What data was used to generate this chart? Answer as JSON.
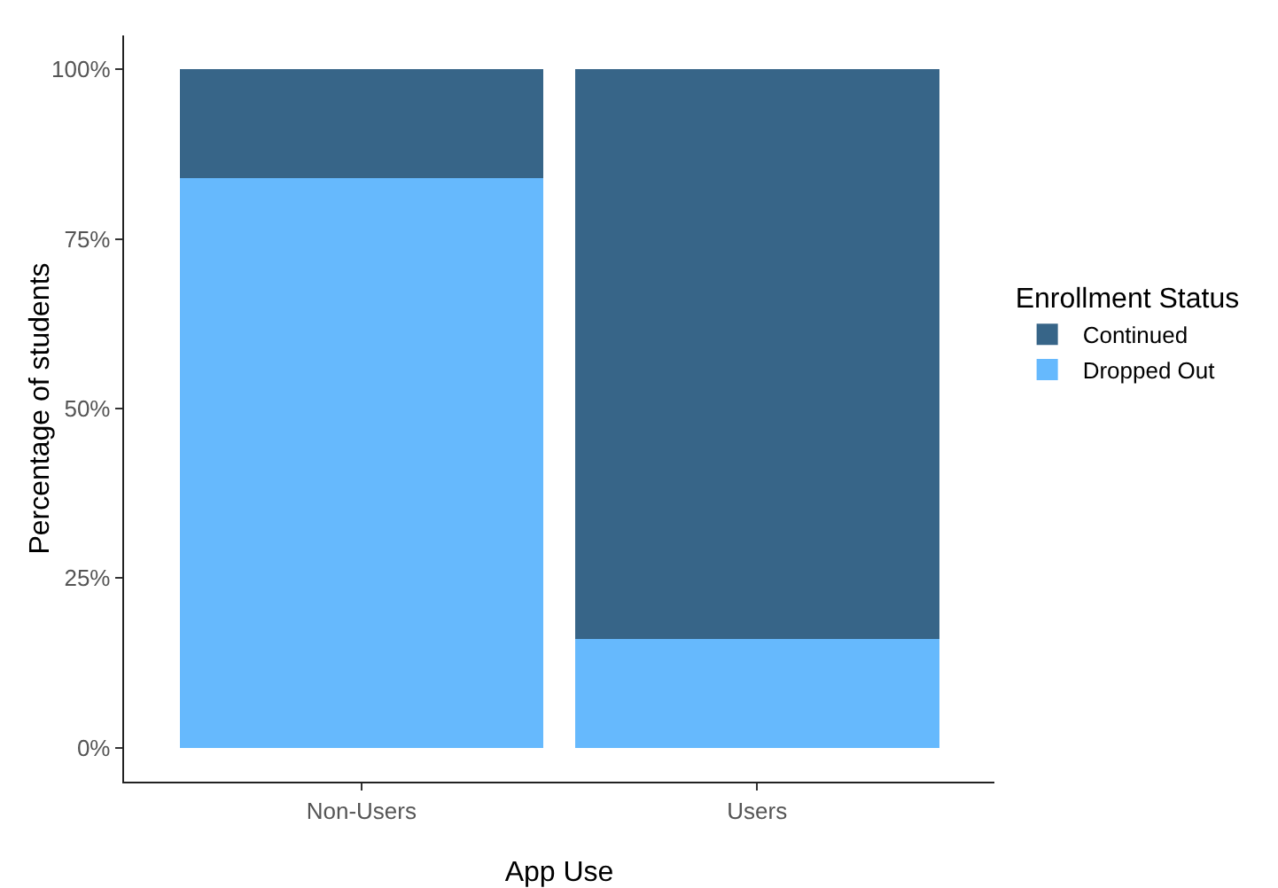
{
  "chart_data": {
    "type": "bar",
    "stacked": true,
    "xlabel": "App Use",
    "ylabel": "Percentage of students",
    "legend_title": "Enrollment Status",
    "legend": "right",
    "grid": false,
    "categories": [
      "Non-Users",
      "Users"
    ],
    "series": [
      {
        "name": "Dropped Out",
        "color": "#66b9fd",
        "values": [
          84,
          16
        ]
      },
      {
        "name": "Continued",
        "color": "#376588",
        "values": [
          16,
          84
        ]
      }
    ],
    "ylim": [
      -5,
      105
    ],
    "yticks": [
      {
        "value": 0,
        "label": "0%"
      },
      {
        "value": 25,
        "label": "25%"
      },
      {
        "value": 50,
        "label": "50%"
      },
      {
        "value": 75,
        "label": "75%"
      },
      {
        "value": 100,
        "label": "100%"
      }
    ]
  }
}
